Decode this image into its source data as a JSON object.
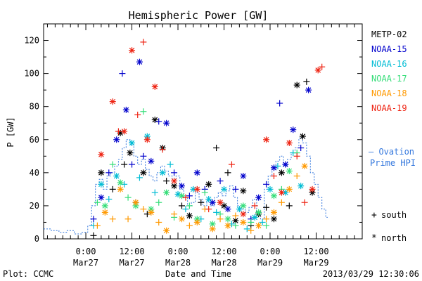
{
  "chart_data": {
    "type": "scatter",
    "title": "Hemispheric Power [GW]",
    "xlabel": "Date and Time",
    "ylabel": "P [GW]",
    "x_unit": "hours from 2013-03-26 00:00 UT",
    "xlim": [
      13,
      96
    ],
    "ylim": [
      0,
      130
    ],
    "yticks": [
      0,
      20,
      40,
      60,
      80,
      100,
      120
    ],
    "xticks": [
      {
        "x": 24,
        "line1": "0:00",
        "line2": "Mar27"
      },
      {
        "x": 36,
        "line1": "12:00",
        "line2": "Mar27"
      },
      {
        "x": 48,
        "line1": "0:00",
        "line2": "Mar28"
      },
      {
        "x": 60,
        "line1": "12:00",
        "line2": "Mar28"
      },
      {
        "x": 72,
        "line1": "0:00",
        "line2": "Mar29"
      },
      {
        "x": 84,
        "line1": "12:00",
        "line2": "Mar29"
      }
    ],
    "grid": false,
    "legend_position": "right",
    "series": [
      {
        "name": "METP-02",
        "color": "#000000",
        "points": [
          [
            26,
            2,
            "+"
          ],
          [
            28,
            40,
            "*"
          ],
          [
            31,
            30,
            "+"
          ],
          [
            33,
            64,
            "*"
          ],
          [
            34,
            45,
            "+"
          ],
          [
            35.5,
            52,
            "*"
          ],
          [
            37,
            22,
            "+"
          ],
          [
            39,
            40,
            "*"
          ],
          [
            40,
            15,
            "+"
          ],
          [
            42,
            72,
            "*"
          ],
          [
            44,
            55,
            "*"
          ],
          [
            45,
            35,
            "+"
          ],
          [
            47,
            32,
            "*"
          ],
          [
            49,
            20,
            "+"
          ],
          [
            51,
            14,
            "*"
          ],
          [
            54,
            22,
            "+"
          ],
          [
            56,
            33,
            "*"
          ],
          [
            58,
            55,
            "+"
          ],
          [
            60,
            20,
            "*"
          ],
          [
            61,
            40,
            "+"
          ],
          [
            63,
            11,
            "*"
          ],
          [
            65,
            29,
            "*"
          ],
          [
            67,
            8,
            "+"
          ],
          [
            69,
            15,
            "*"
          ],
          [
            71,
            19,
            "+"
          ],
          [
            73,
            12,
            "*"
          ],
          [
            75,
            40,
            "*"
          ],
          [
            77,
            20,
            "+"
          ],
          [
            79,
            93,
            "*"
          ],
          [
            80.5,
            62,
            "*"
          ],
          [
            81.5,
            95,
            "+"
          ],
          [
            83,
            28,
            "*"
          ]
        ]
      },
      {
        "name": "NOAA-15",
        "color": "#0000cc",
        "points": [
          [
            26,
            12,
            "+"
          ],
          [
            28,
            25,
            "*"
          ],
          [
            30,
            40,
            "+"
          ],
          [
            32,
            60,
            "*"
          ],
          [
            33.5,
            100,
            "+"
          ],
          [
            34.5,
            78,
            "*"
          ],
          [
            36,
            45,
            "+"
          ],
          [
            38,
            107,
            "*"
          ],
          [
            39,
            50,
            "+"
          ],
          [
            41,
            47,
            "*"
          ],
          [
            43,
            71,
            "+"
          ],
          [
            45,
            70,
            "*"
          ],
          [
            47,
            40,
            "+"
          ],
          [
            49,
            32,
            "*"
          ],
          [
            51,
            26,
            "+"
          ],
          [
            53,
            40,
            "*"
          ],
          [
            55,
            30,
            "+"
          ],
          [
            57,
            22,
            "*"
          ],
          [
            59,
            35,
            "+"
          ],
          [
            61,
            18,
            "*"
          ],
          [
            63,
            30,
            "+"
          ],
          [
            65,
            38,
            "*"
          ],
          [
            67,
            12,
            "+"
          ],
          [
            69,
            25,
            "*"
          ],
          [
            71,
            33,
            "+"
          ],
          [
            73,
            43,
            "*"
          ],
          [
            74.5,
            82,
            "+"
          ],
          [
            76,
            45,
            "*"
          ],
          [
            78,
            66,
            "*"
          ],
          [
            80,
            55,
            "+"
          ],
          [
            82,
            90,
            "*"
          ]
        ]
      },
      {
        "name": "NOAA-16",
        "color": "#00bcd4",
        "points": [
          [
            26,
            8,
            "+"
          ],
          [
            28,
            33,
            "*"
          ],
          [
            30,
            24,
            "+"
          ],
          [
            32,
            38,
            "*"
          ],
          [
            34,
            33,
            "+"
          ],
          [
            36,
            58,
            "*"
          ],
          [
            38,
            37,
            "+"
          ],
          [
            40,
            62,
            "*"
          ],
          [
            42,
            28,
            "+"
          ],
          [
            44,
            40,
            "*"
          ],
          [
            46,
            45,
            "+"
          ],
          [
            48,
            27,
            "*"
          ],
          [
            50,
            18,
            "+"
          ],
          [
            52,
            30,
            "*"
          ],
          [
            54,
            12,
            "+"
          ],
          [
            56,
            24,
            "*"
          ],
          [
            58,
            16,
            "+"
          ],
          [
            60,
            30,
            "*"
          ],
          [
            62,
            9,
            "+"
          ],
          [
            64,
            18,
            "*"
          ],
          [
            66,
            6,
            "+"
          ],
          [
            68,
            13,
            "*"
          ],
          [
            70,
            10,
            "+"
          ],
          [
            72,
            30,
            "*"
          ],
          [
            74,
            44,
            "+"
          ],
          [
            76,
            28,
            "*"
          ],
          [
            78,
            52,
            "+"
          ],
          [
            80,
            32,
            "*"
          ]
        ]
      },
      {
        "name": "NOAA-17",
        "color": "#33dd77",
        "points": [
          [
            27,
            22,
            "+"
          ],
          [
            29,
            20,
            "*"
          ],
          [
            31,
            45,
            "+"
          ],
          [
            33,
            34,
            "*"
          ],
          [
            35,
            25,
            "+"
          ],
          [
            37,
            20,
            "*"
          ],
          [
            39,
            77,
            "+"
          ],
          [
            41,
            18,
            "*"
          ],
          [
            43,
            22,
            "+"
          ],
          [
            45,
            28,
            "*"
          ],
          [
            47,
            13,
            "+"
          ],
          [
            49,
            26,
            "*"
          ],
          [
            51,
            20,
            "+"
          ],
          [
            53,
            12,
            "*"
          ],
          [
            55,
            28,
            "+"
          ],
          [
            57,
            9,
            "*"
          ],
          [
            59,
            15,
            "+"
          ],
          [
            61,
            12,
            "*"
          ],
          [
            63,
            8,
            "+"
          ],
          [
            65,
            20,
            "*"
          ],
          [
            67,
            10,
            "+"
          ],
          [
            69,
            16,
            "*"
          ],
          [
            71,
            8,
            "+"
          ],
          [
            73,
            26,
            "*"
          ],
          [
            75,
            30,
            "+"
          ],
          [
            77,
            41,
            "*"
          ],
          [
            79,
            52,
            "+"
          ]
        ]
      },
      {
        "name": "NOAA-18",
        "color": "#ff9900",
        "points": [
          [
            27,
            8,
            "+"
          ],
          [
            29,
            16,
            "*"
          ],
          [
            31,
            12,
            "+"
          ],
          [
            33,
            30,
            "*"
          ],
          [
            35,
            12,
            "+"
          ],
          [
            37,
            22,
            "*"
          ],
          [
            39,
            18,
            "+"
          ],
          [
            41,
            16,
            "*"
          ],
          [
            43,
            10,
            "+"
          ],
          [
            45,
            5,
            "*"
          ],
          [
            47,
            15,
            "+"
          ],
          [
            49,
            12,
            "*"
          ],
          [
            51,
            8,
            "+"
          ],
          [
            53,
            10,
            "*"
          ],
          [
            55,
            18,
            "+"
          ],
          [
            57,
            6,
            "*"
          ],
          [
            59,
            12,
            "+"
          ],
          [
            61,
            8,
            "*"
          ],
          [
            63,
            14,
            "+"
          ],
          [
            65,
            10,
            "*"
          ],
          [
            67,
            5,
            "+"
          ],
          [
            69,
            8,
            "*"
          ],
          [
            71,
            12,
            "+"
          ],
          [
            73,
            16,
            "*"
          ],
          [
            75,
            22,
            "+"
          ],
          [
            77,
            30,
            "*"
          ],
          [
            79,
            38,
            "+"
          ],
          [
            81,
            44,
            "*"
          ]
        ]
      },
      {
        "name": "NOAA-19",
        "color": "#ee2211",
        "points": [
          [
            28,
            51,
            "*"
          ],
          [
            31,
            83,
            "*"
          ],
          [
            32.5,
            65,
            "+"
          ],
          [
            34,
            65,
            "*"
          ],
          [
            36,
            114,
            "*"
          ],
          [
            37.5,
            75,
            "+"
          ],
          [
            39,
            119,
            "+"
          ],
          [
            40,
            60,
            "*"
          ],
          [
            42,
            92,
            "*"
          ],
          [
            44,
            54,
            "+"
          ],
          [
            47,
            35,
            "*"
          ],
          [
            50,
            25,
            "+"
          ],
          [
            53,
            30,
            "*"
          ],
          [
            56,
            18,
            "+"
          ],
          [
            59,
            22,
            "*"
          ],
          [
            62,
            45,
            "+"
          ],
          [
            65,
            15,
            "*"
          ],
          [
            68,
            20,
            "+"
          ],
          [
            71,
            60,
            "*"
          ],
          [
            73,
            38,
            "+"
          ],
          [
            75,
            28,
            "*"
          ],
          [
            77,
            58,
            "*"
          ],
          [
            79,
            50,
            "+"
          ],
          [
            81,
            22,
            "+"
          ],
          [
            83,
            30,
            "*"
          ],
          [
            84.5,
            102,
            "*"
          ],
          [
            85.5,
            104,
            "+"
          ]
        ]
      }
    ],
    "ovation": {
      "name": "— Ovation",
      "name2": "Prime HPI",
      "color": "#3377dd",
      "steps": [
        [
          13,
          6
        ],
        [
          15,
          5
        ],
        [
          17,
          4
        ],
        [
          19,
          5
        ],
        [
          21,
          3
        ],
        [
          23,
          4
        ],
        [
          24.5,
          8
        ],
        [
          25.5,
          20
        ],
        [
          26.5,
          33
        ],
        [
          27.5,
          36
        ],
        [
          28.5,
          30
        ],
        [
          29.5,
          38
        ],
        [
          30.5,
          40
        ],
        [
          31.5,
          44
        ],
        [
          32.5,
          48
        ],
        [
          33.5,
          55
        ],
        [
          34.5,
          60
        ],
        [
          35.5,
          57
        ],
        [
          36.5,
          50
        ],
        [
          37.5,
          45
        ],
        [
          38.5,
          48
        ],
        [
          39.5,
          42
        ],
        [
          40.5,
          38
        ],
        [
          41.5,
          35
        ],
        [
          42.5,
          40
        ],
        [
          43.5,
          44
        ],
        [
          44.5,
          41
        ],
        [
          45.5,
          38
        ],
        [
          46.5,
          35
        ],
        [
          47.5,
          38
        ],
        [
          48.5,
          30
        ],
        [
          49.5,
          25
        ],
        [
          50.5,
          20
        ],
        [
          51.5,
          22
        ],
        [
          52.5,
          28
        ],
        [
          53.5,
          24
        ],
        [
          54.5,
          20
        ],
        [
          55.5,
          23
        ],
        [
          56.5,
          20
        ],
        [
          57.5,
          25
        ],
        [
          58.5,
          28
        ],
        [
          59.5,
          26
        ],
        [
          60.5,
          29
        ],
        [
          61.5,
          32
        ],
        [
          62.5,
          25
        ],
        [
          63.5,
          20
        ],
        [
          64.5,
          18
        ],
        [
          65.5,
          16
        ],
        [
          66.5,
          19
        ],
        [
          67.5,
          24
        ],
        [
          68.5,
          15
        ],
        [
          69.5,
          12
        ],
        [
          70.5,
          30
        ],
        [
          71.5,
          38
        ],
        [
          72.5,
          42
        ],
        [
          73.5,
          47
        ],
        [
          74.5,
          50
        ],
        [
          75.5,
          44
        ],
        [
          76.5,
          48
        ],
        [
          77.5,
          52
        ],
        [
          78.5,
          55
        ],
        [
          79.5,
          61
        ],
        [
          80.5,
          58
        ],
        [
          81.5,
          50
        ],
        [
          82.5,
          40
        ],
        [
          83.5,
          33
        ],
        [
          84.5,
          25
        ],
        [
          85.5,
          18
        ],
        [
          86.5,
          13
        ],
        [
          87,
          13
        ]
      ]
    },
    "markers_legend": {
      "south_symbol": "+",
      "south_label": "south",
      "north_symbol": "*",
      "north_label": "north"
    },
    "footer": {
      "left": "Plot: CCMC",
      "center": "Date and Time",
      "right": "2013/03/29 12:30:06"
    }
  }
}
